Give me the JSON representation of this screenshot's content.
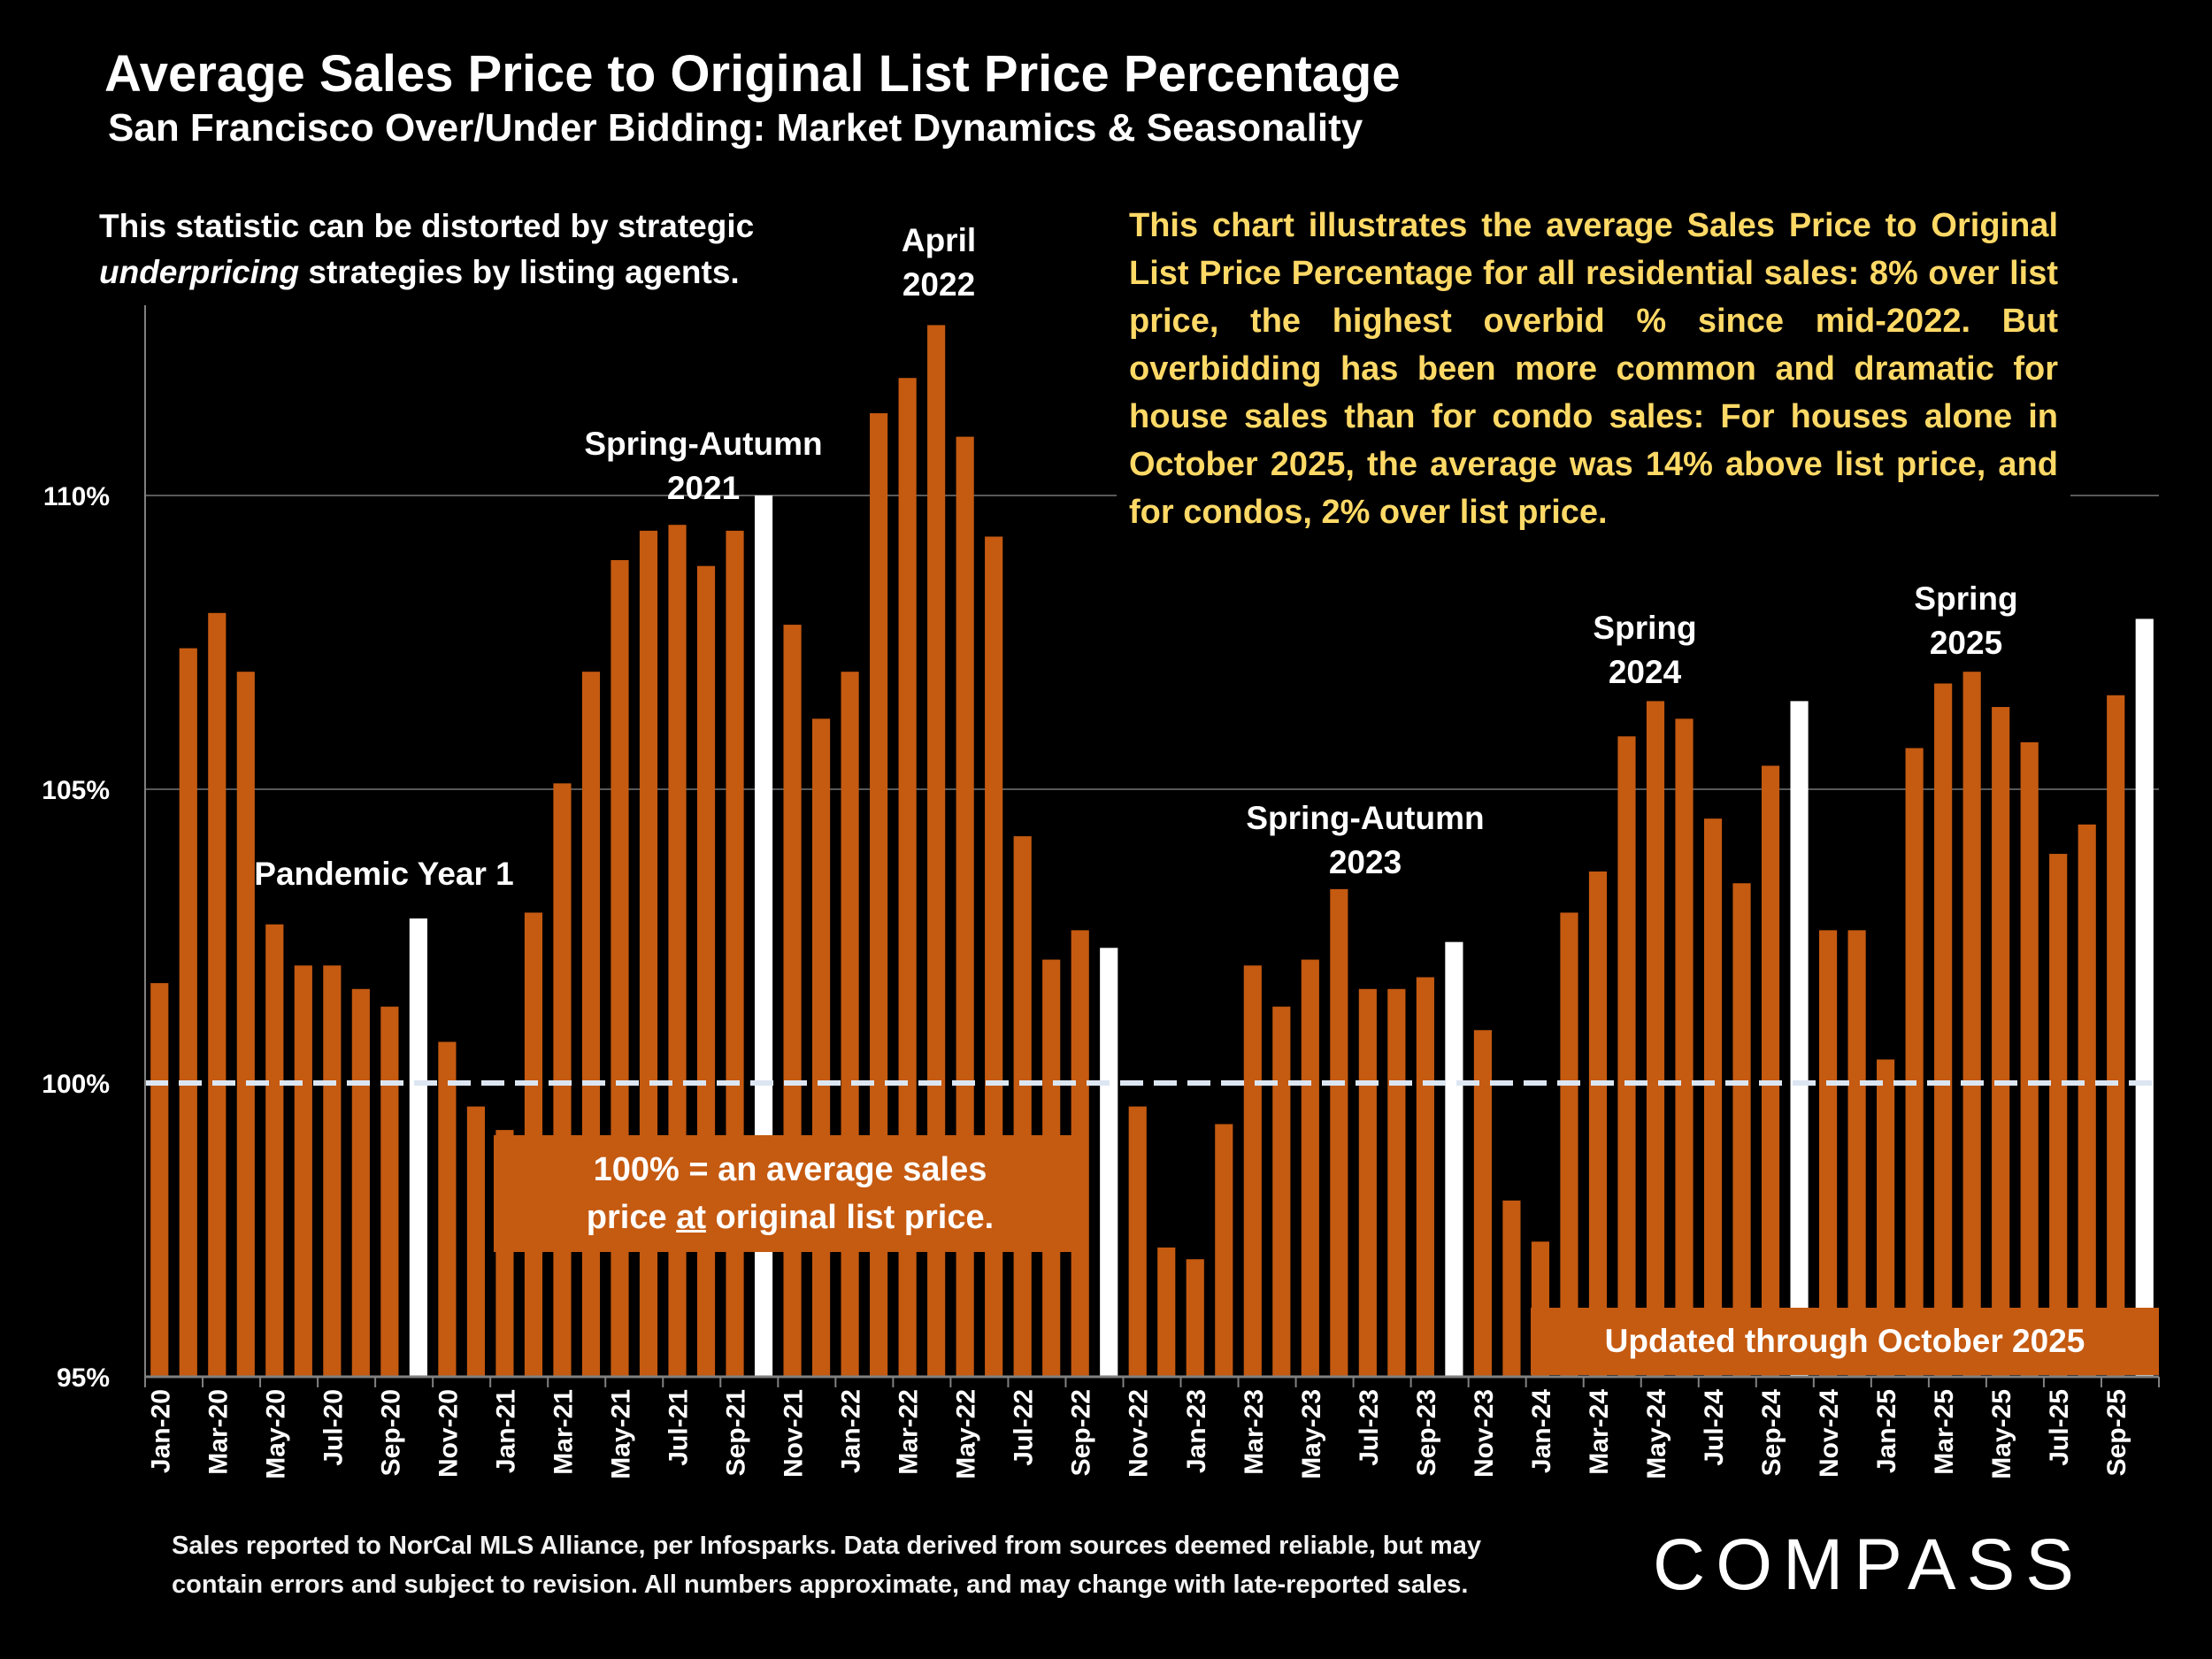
{
  "title": "Average Sales Price to Original List Price Percentage",
  "subtitle": "San Francisco Over/Under Bidding: Market Dynamics & Seasonality",
  "left_note": {
    "line1": "This statistic can be distorted by strategic",
    "em": "underpricing",
    "rest": " strategies by listing agents."
  },
  "right_note": "This chart illustrates the average Sales Price to Original List Price Percentage for all residential sales:  8% over list price, the highest overbid % since mid-2022. But overbidding has been more common and dramatic for house sales than for condo sales:  For houses alone in October 2025, the average was 14% above list price, and for condos, 2% over list price.",
  "annotations": {
    "pandemic": "Pandemic Year 1",
    "sa2021_1": "Spring-Autumn",
    "sa2021_2": "2021",
    "apr2022_1": "April",
    "apr2022_2": "2022",
    "sa2023_1": "Spring-Autumn",
    "sa2023_2": "2023",
    "sp2024_1": "Spring",
    "sp2024_2": "2024",
    "sp2025_1": "Spring",
    "sp2025_2": "2025"
  },
  "box_100": {
    "line1": "100% = an average sales",
    "pre": "price ",
    "u": "at",
    "post": " original list price."
  },
  "box_updated": "Updated through October 2025",
  "footnote": {
    "line1": "Sales reported to NorCal MLS Alliance, per Infosparks. Data derived from sources deemed reliable, but may",
    "line2": "contain errors and subject to revision. All numbers approximate, and may change with late-reported sales."
  },
  "logo": "COMPASS",
  "colors": {
    "bar": "#C55A11",
    "highlight": "#FFFFFF",
    "note": "#FFD966",
    "reference_line": "#DCE6F2"
  },
  "chart_data": {
    "type": "bar",
    "ylim": [
      95,
      113.5
    ],
    "yticks": [
      95,
      100,
      105,
      110
    ],
    "ytick_labels": [
      "95%",
      "100%",
      "105%",
      "110%"
    ],
    "reference_line": 100,
    "grid": true,
    "categories": [
      "Jan-20",
      "Feb-20",
      "Mar-20",
      "Apr-20",
      "May-20",
      "Jun-20",
      "Jul-20",
      "Aug-20",
      "Sep-20",
      "Oct-20",
      "Nov-20",
      "Dec-20",
      "Jan-21",
      "Feb-21",
      "Mar-21",
      "Apr-21",
      "May-21",
      "Jun-21",
      "Jul-21",
      "Aug-21",
      "Sep-21",
      "Oct-21",
      "Nov-21",
      "Dec-21",
      "Jan-22",
      "Feb-22",
      "Mar-22",
      "Apr-22",
      "May-22",
      "Jun-22",
      "Jul-22",
      "Aug-22",
      "Sep-22",
      "Oct-22",
      "Nov-22",
      "Dec-22",
      "Jan-23",
      "Feb-23",
      "Mar-23",
      "Apr-23",
      "May-23",
      "Jun-23",
      "Jul-23",
      "Aug-23",
      "Sep-23",
      "Oct-23",
      "Nov-23",
      "Dec-23",
      "Jan-24",
      "Feb-24",
      "Mar-24",
      "Apr-24",
      "May-24",
      "Jun-24",
      "Jul-24",
      "Aug-24",
      "Sep-24",
      "Oct-24",
      "Nov-24",
      "Dec-24",
      "Jan-25",
      "Feb-25",
      "Mar-25",
      "Apr-25",
      "May-25",
      "Jun-25",
      "Jul-25",
      "Aug-25",
      "Sep-25",
      "Oct-25"
    ],
    "values": [
      101.7,
      107.4,
      108.0,
      107.0,
      102.7,
      102.0,
      102.0,
      101.6,
      101.3,
      102.8,
      100.7,
      99.6,
      99.2,
      102.9,
      105.1,
      107.0,
      108.9,
      109.4,
      109.5,
      108.8,
      109.4,
      110.0,
      107.8,
      106.2,
      107.0,
      111.4,
      112.0,
      112.9,
      111.0,
      109.3,
      104.2,
      102.1,
      102.6,
      102.3,
      99.6,
      97.2,
      97.0,
      99.3,
      102.0,
      101.3,
      102.1,
      103.3,
      101.6,
      101.6,
      101.8,
      102.4,
      100.9,
      98.0,
      97.3,
      102.9,
      103.6,
      105.9,
      106.5,
      106.2,
      104.5,
      103.4,
      105.4,
      106.5,
      102.6,
      102.6,
      100.4,
      105.7,
      106.8,
      107.0,
      106.4,
      105.8,
      103.9,
      104.4,
      106.6,
      107.9
    ],
    "highlighted": [
      "Oct-20",
      "Oct-21",
      "Oct-22",
      "Oct-23",
      "Oct-24",
      "Oct-25"
    ],
    "xtick_labels": [
      "Jan-20",
      "Mar-20",
      "May-20",
      "Jul-20",
      "Sep-20",
      "Nov-20",
      "Jan-21",
      "Mar-21",
      "May-21",
      "Jul-21",
      "Sep-21",
      "Nov-21",
      "Jan-22",
      "Mar-22",
      "May-22",
      "Jul-22",
      "Sep-22",
      "Nov-22",
      "Jan-23",
      "Mar-23",
      "May-23",
      "Jul-23",
      "Sep-23",
      "Nov-23",
      "Jan-24",
      "Mar-24",
      "May-24",
      "Jul-24",
      "Sep-24",
      "Nov-24",
      "Jan-25",
      "Mar-25",
      "May-25",
      "Jul-25",
      "Sep-25"
    ]
  }
}
